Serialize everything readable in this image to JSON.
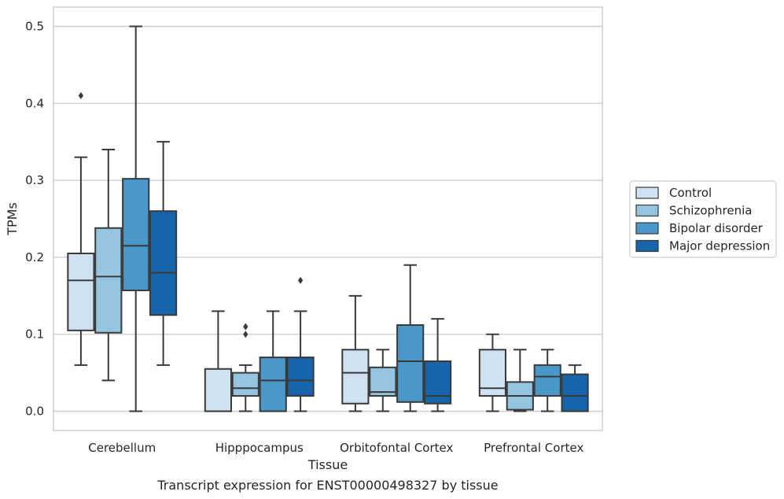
{
  "chart_data": {
    "type": "box",
    "title": "",
    "caption": "Transcript expression for ENST00000498327 by tissue",
    "xlabel": "Tissue",
    "ylabel": "TPMs",
    "ylim": [
      -0.025,
      0.525
    ],
    "yticks": [
      "0.0",
      "0.1",
      "0.2",
      "0.3",
      "0.4",
      "0.5"
    ],
    "grid": "horizontal",
    "legend_position": "right",
    "categories": [
      "Cerebellum",
      "Hipppocampus",
      "Orbitofontal Cortex",
      "Prefrontal Cortex"
    ],
    "series": [
      {
        "name": "Control",
        "color": "#d0e1f2",
        "boxes": [
          {
            "whisker_low": 0.06,
            "q1": 0.105,
            "median": 0.17,
            "q3": 0.205,
            "whisker_high": 0.33,
            "outliers": [
              0.41
            ]
          },
          {
            "whisker_low": 0.0,
            "q1": 0.0,
            "median": 0.0,
            "q3": 0.055,
            "whisker_high": 0.13,
            "outliers": []
          },
          {
            "whisker_low": 0.0,
            "q1": 0.01,
            "median": 0.05,
            "q3": 0.08,
            "whisker_high": 0.15,
            "outliers": []
          },
          {
            "whisker_low": 0.0,
            "q1": 0.02,
            "median": 0.03,
            "q3": 0.08,
            "whisker_high": 0.1,
            "outliers": []
          }
        ]
      },
      {
        "name": "Schizophrenia",
        "color": "#94c4df",
        "boxes": [
          {
            "whisker_low": 0.04,
            "q1": 0.102,
            "median": 0.175,
            "q3": 0.238,
            "whisker_high": 0.34,
            "outliers": []
          },
          {
            "whisker_low": 0.0,
            "q1": 0.02,
            "median": 0.03,
            "q3": 0.05,
            "whisker_high": 0.06,
            "outliers": [
              0.1,
              0.11
            ]
          },
          {
            "whisker_low": 0.0,
            "q1": 0.02,
            "median": 0.025,
            "q3": 0.057,
            "whisker_high": 0.08,
            "outliers": []
          },
          {
            "whisker_low": 0.0,
            "q1": 0.002,
            "median": 0.02,
            "q3": 0.038,
            "whisker_high": 0.08,
            "outliers": []
          }
        ]
      },
      {
        "name": "Bipolar disorder",
        "color": "#4a98c9",
        "boxes": [
          {
            "whisker_low": 0.0,
            "q1": 0.157,
            "median": 0.215,
            "q3": 0.302,
            "whisker_high": 0.5,
            "outliers": []
          },
          {
            "whisker_low": 0.0,
            "q1": 0.0,
            "median": 0.04,
            "q3": 0.07,
            "whisker_high": 0.13,
            "outliers": []
          },
          {
            "whisker_low": 0.0,
            "q1": 0.012,
            "median": 0.065,
            "q3": 0.112,
            "whisker_high": 0.19,
            "outliers": []
          },
          {
            "whisker_low": 0.0,
            "q1": 0.02,
            "median": 0.045,
            "q3": 0.06,
            "whisker_high": 0.08,
            "outliers": []
          }
        ]
      },
      {
        "name": "Major depression",
        "color": "#1764ab",
        "boxes": [
          {
            "whisker_low": 0.06,
            "q1": 0.125,
            "median": 0.18,
            "q3": 0.26,
            "whisker_high": 0.35,
            "outliers": []
          },
          {
            "whisker_low": 0.0,
            "q1": 0.02,
            "median": 0.04,
            "q3": 0.07,
            "whisker_high": 0.13,
            "outliers": [
              0.17
            ]
          },
          {
            "whisker_low": 0.0,
            "q1": 0.01,
            "median": 0.02,
            "q3": 0.065,
            "whisker_high": 0.12,
            "outliers": []
          },
          {
            "whisker_low": 0.0,
            "q1": 0.0,
            "median": 0.02,
            "q3": 0.048,
            "whisker_high": 0.06,
            "outliers": []
          }
        ]
      }
    ]
  }
}
